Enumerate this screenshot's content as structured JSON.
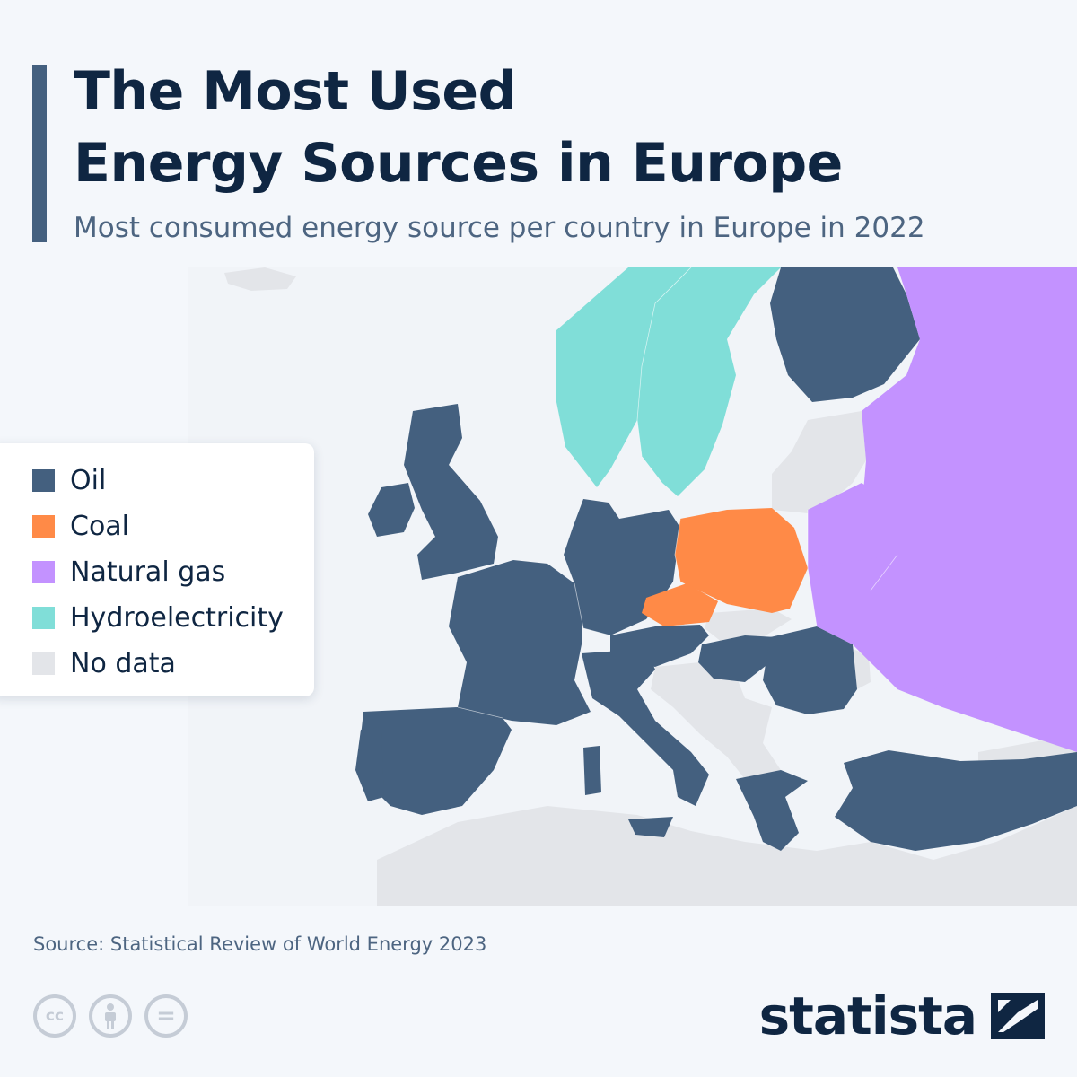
{
  "title_line1": "The Most Used",
  "title_line2": "Energy Sources in Europe",
  "subtitle": "Most consumed energy source per country in Europe in 2022",
  "legend": [
    {
      "label": "Oil",
      "color": "#44607f"
    },
    {
      "label": "Coal",
      "color": "#ff8a47"
    },
    {
      "label": "Natural gas",
      "color": "#c392ff"
    },
    {
      "label": "Hydroelectricity",
      "color": "#80ded8"
    },
    {
      "label": "No data",
      "color": "#e3e5e9"
    }
  ],
  "map": {
    "countries": [
      {
        "name": "Norway",
        "category": "Hydroelectricity"
      },
      {
        "name": "Sweden",
        "category": "Hydroelectricity"
      },
      {
        "name": "Finland",
        "category": "Oil"
      },
      {
        "name": "United Kingdom",
        "category": "Oil"
      },
      {
        "name": "Ireland",
        "category": "Oil"
      },
      {
        "name": "France",
        "category": "Oil"
      },
      {
        "name": "Spain",
        "category": "Oil"
      },
      {
        "name": "Portugal",
        "category": "Oil"
      },
      {
        "name": "Germany",
        "category": "Oil"
      },
      {
        "name": "Italy",
        "category": "Oil"
      },
      {
        "name": "Austria",
        "category": "Oil"
      },
      {
        "name": "Hungary",
        "category": "Oil"
      },
      {
        "name": "Romania",
        "category": "Oil"
      },
      {
        "name": "Greece",
        "category": "Oil"
      },
      {
        "name": "Turkey",
        "category": "Oil"
      },
      {
        "name": "Poland",
        "category": "Coal"
      },
      {
        "name": "Czechia",
        "category": "Coal"
      },
      {
        "name": "Russia",
        "category": "Natural gas"
      },
      {
        "name": "Belarus",
        "category": "Natural gas"
      },
      {
        "name": "Ukraine",
        "category": "Natural gas"
      }
    ]
  },
  "source": "Source: Statistical Review of World Energy 2023",
  "license_icons": [
    "cc-icon",
    "attribution-icon",
    "no-derivatives-icon"
  ],
  "license_text": {
    "cc": "cc",
    "nd": "="
  },
  "brand": "statista"
}
